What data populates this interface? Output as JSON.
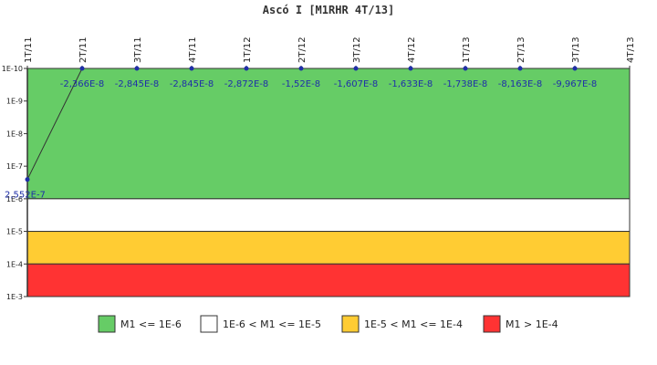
{
  "chart_data": {
    "type": "line",
    "title": "Ascó I [M1RHR 4T/13]",
    "x_labels": [
      "1T/11",
      "2T/11",
      "3T/11",
      "4T/11",
      "1T/12",
      "2T/12",
      "3T/12",
      "4T/12",
      "1T/13",
      "2T/13",
      "3T/13",
      "4T/13"
    ],
    "y_tick_labels": [
      "1E-10",
      "1E-9",
      "1E-8",
      "1E-7",
      "1E-6",
      "1E-5",
      "1E-4",
      "1E-3"
    ],
    "y_axis": {
      "scale": "log",
      "inverted": true,
      "top": 1e-10,
      "bottom": 0.001
    },
    "series": [
      {
        "values": [
          2.552e-07,
          -2.366e-08,
          -2.845e-08,
          -2.845e-08,
          -2.872e-08,
          -1.52e-08,
          -1.607e-08,
          -1.633e-08,
          -1.738e-08,
          -8.163e-08,
          -9.967e-08,
          null
        ],
        "value_labels": [
          "2,552E-7",
          "-2,366E-8",
          "-2,845E-8",
          "-2,845E-8",
          "-2,872E-8",
          "-1,52E-8",
          "-1,607E-8",
          "-1,633E-8",
          "-1,738E-8",
          "-8,163E-8",
          "-9,967E-8",
          ""
        ],
        "color": "#1f2fa8"
      }
    ],
    "bands": [
      {
        "from": 1e-10,
        "to": 1e-06,
        "color": "#66cc66",
        "label": "M1 <= 1E-6"
      },
      {
        "from": 1e-06,
        "to": 1e-05,
        "color": "#ffffff",
        "label": "1E-6 < M1 <= 1E-5"
      },
      {
        "from": 1e-05,
        "to": 0.0001,
        "color": "#ffcc33",
        "label": "1E-5 < M1 <= 1E-4"
      },
      {
        "from": 0.0001,
        "to": 0.001,
        "color": "#ff3333",
        "label": "M1 > 1E-4"
      }
    ],
    "legend_placement": "bottom",
    "grid": false
  }
}
